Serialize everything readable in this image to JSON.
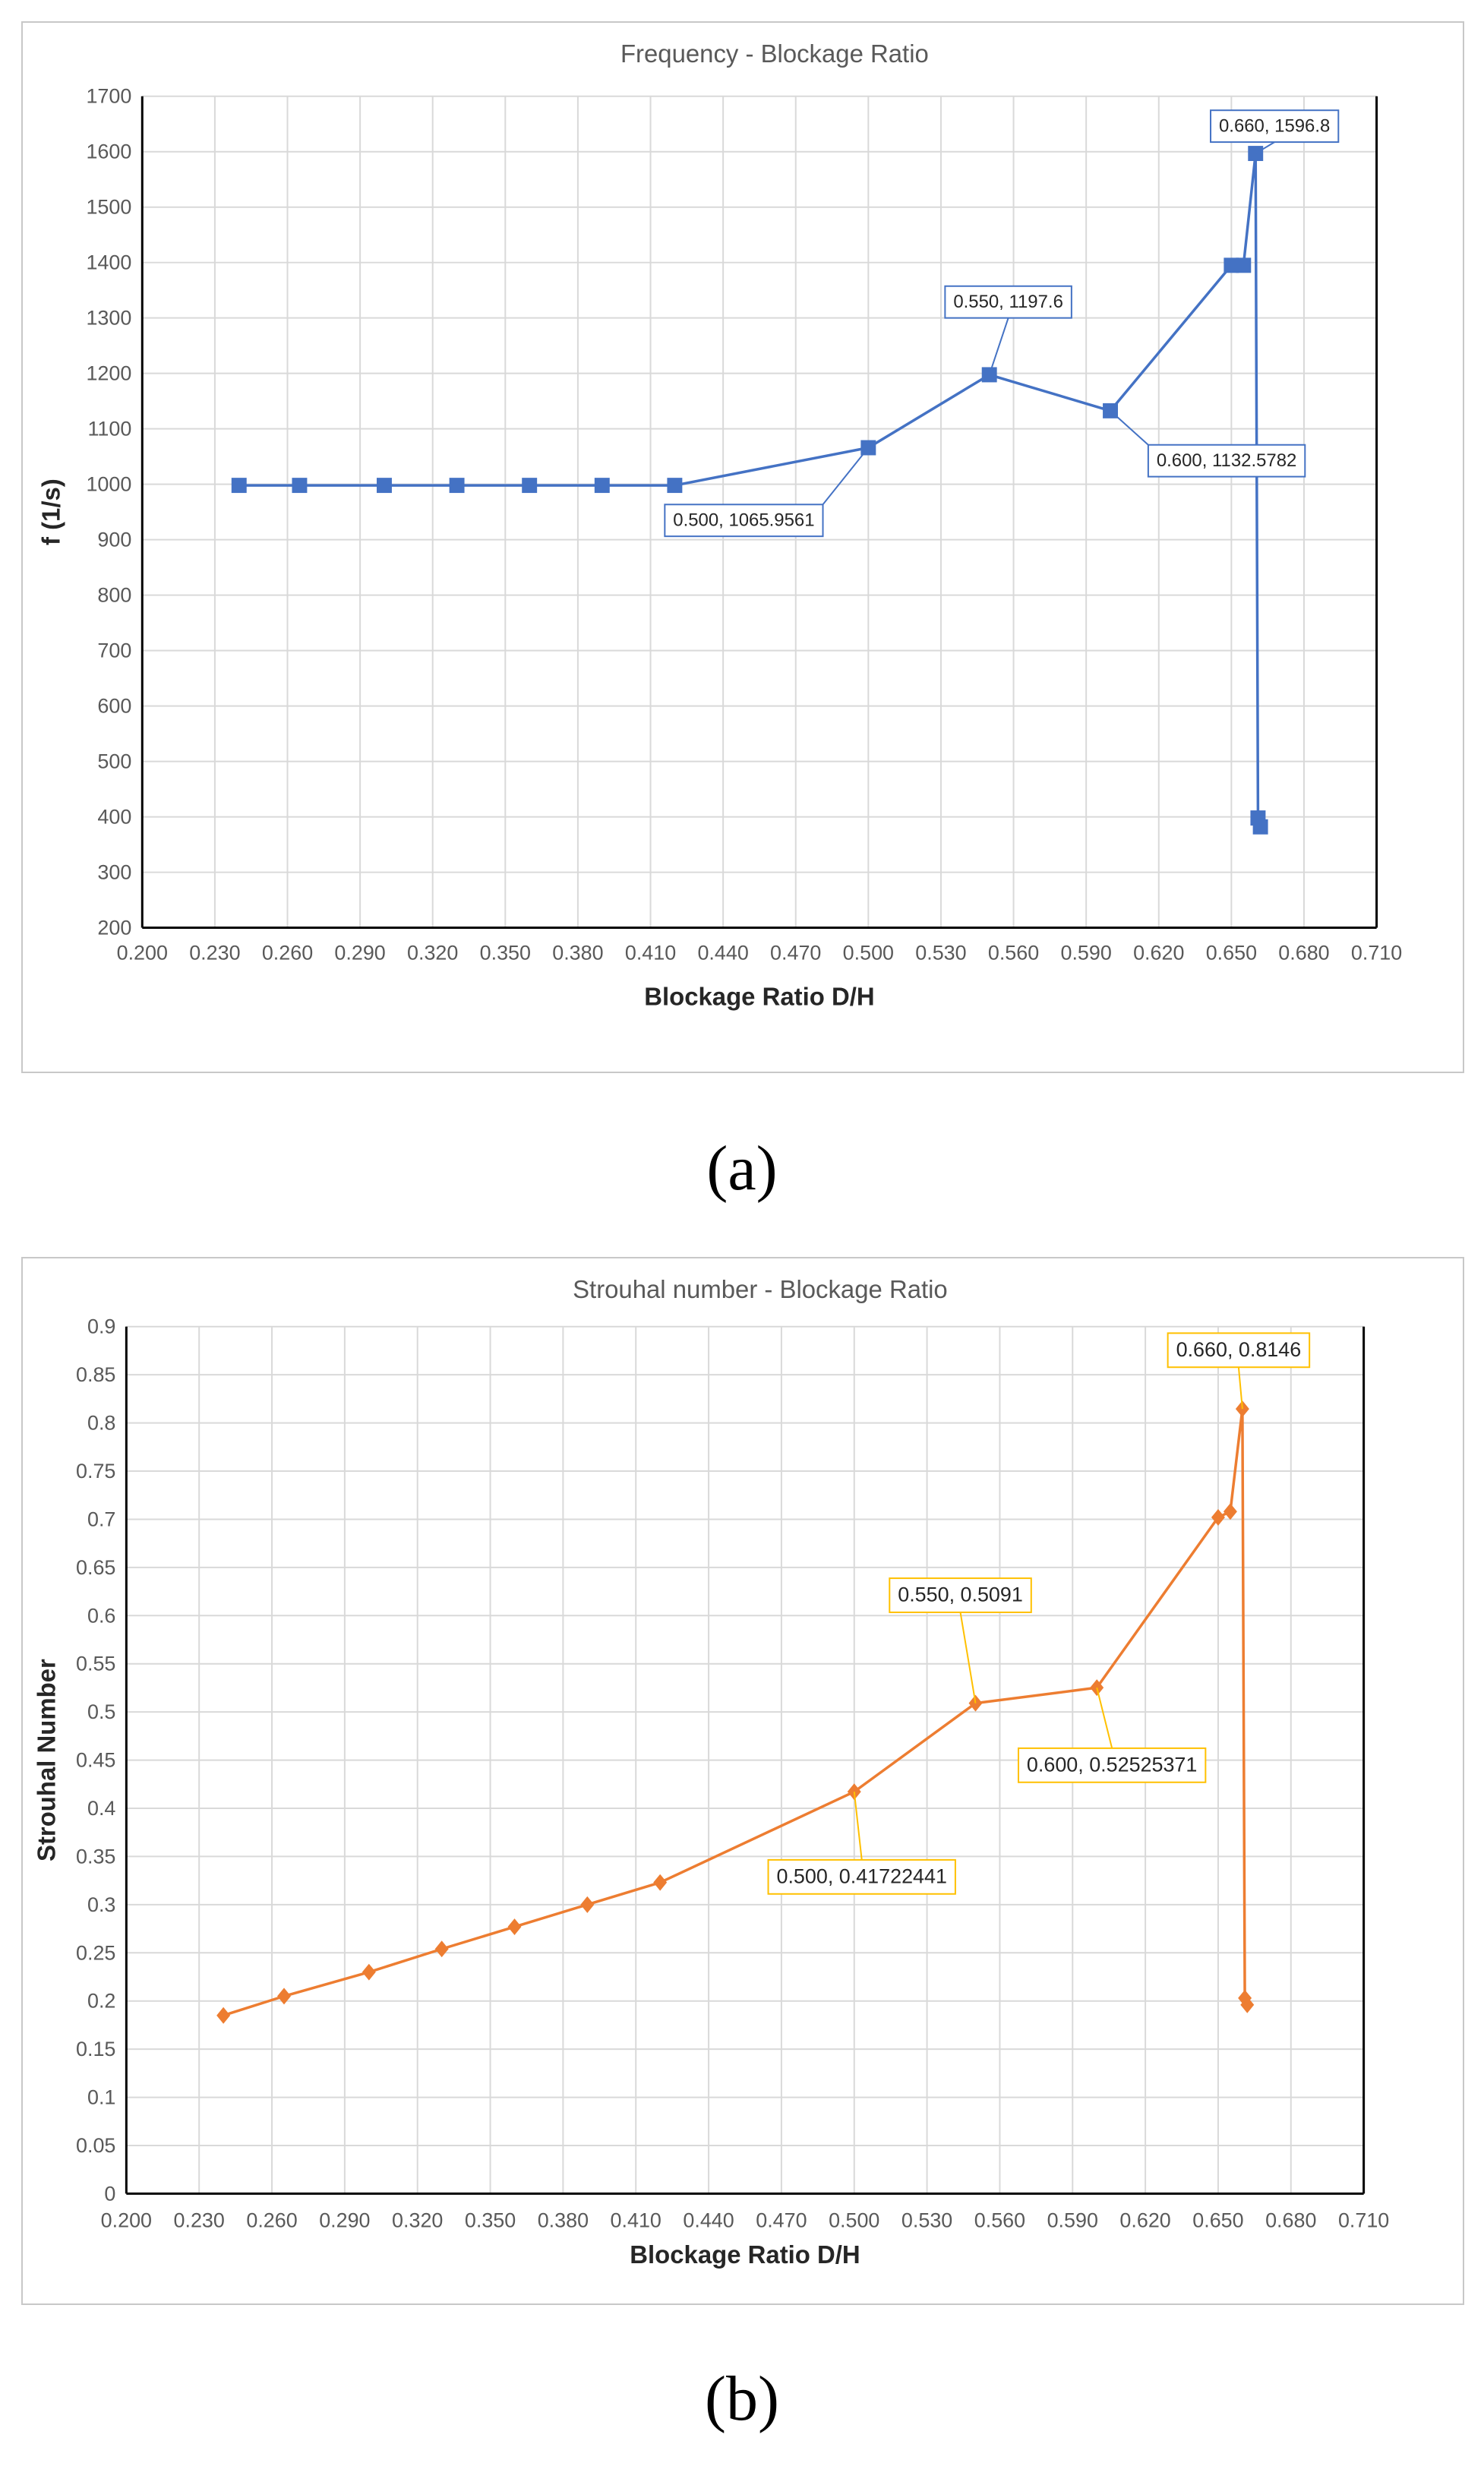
{
  "chart_data": [
    {
      "id": "a",
      "type": "line",
      "title": "Frequency - Blockage Ratio",
      "xlabel": "Blockage Ratio D/H",
      "ylabel": "f (1/s)",
      "xlim": [
        0.2,
        0.71
      ],
      "ylim": [
        200,
        1700
      ],
      "xticks": [
        "0.200",
        "0.230",
        "0.260",
        "0.290",
        "0.320",
        "0.350",
        "0.380",
        "0.410",
        "0.440",
        "0.470",
        "0.500",
        "0.530",
        "0.560",
        "0.590",
        "0.620",
        "0.650",
        "0.680",
        "0.710"
      ],
      "yticks": [
        "200",
        "300",
        "400",
        "500",
        "600",
        "700",
        "800",
        "900",
        "1000",
        "1100",
        "1200",
        "1300",
        "1400",
        "1500",
        "1600",
        "1700"
      ],
      "grid": true,
      "marker": "square",
      "color": "#4472c4",
      "label_color": "#4472c4",
      "series": [
        {
          "x": [
            0.24,
            0.265,
            0.3,
            0.33,
            0.36,
            0.39,
            0.42,
            0.5,
            0.55,
            0.6,
            0.65,
            0.655,
            0.66,
            0.661,
            0.662
          ],
          "y": [
            998,
            998,
            998,
            998,
            998,
            998,
            998,
            1065.9561,
            1197.6,
            1132.5782,
            1395,
            1395,
            1596.8,
            398,
            382
          ]
        }
      ],
      "annotations": [
        {
          "text": "0.500, 1065.9561",
          "x": 0.5,
          "y": 1065.9561
        },
        {
          "text": "0.550, 1197.6",
          "x": 0.55,
          "y": 1197.6
        },
        {
          "text": "0.600, 1132.5782",
          "x": 0.6,
          "y": 1132.5782
        },
        {
          "text": "0.660, 1596.8",
          "x": 0.66,
          "y": 1596.8
        }
      ]
    },
    {
      "id": "b",
      "type": "line",
      "title": "Strouhal number - Blockage Ratio",
      "xlabel": "Blockage Ratio D/H",
      "ylabel": "Strouhal Number",
      "xlim": [
        0.2,
        0.71
      ],
      "ylim": [
        0,
        0.9
      ],
      "xticks": [
        "0.200",
        "0.230",
        "0.260",
        "0.290",
        "0.320",
        "0.350",
        "0.380",
        "0.410",
        "0.440",
        "0.470",
        "0.500",
        "0.530",
        "0.560",
        "0.590",
        "0.620",
        "0.650",
        "0.680",
        "0.710"
      ],
      "yticks": [
        "0",
        "0.05",
        "0.1",
        "0.15",
        "0.2",
        "0.25",
        "0.3",
        "0.35",
        "0.4",
        "0.45",
        "0.5",
        "0.55",
        "0.6",
        "0.65",
        "0.7",
        "0.75",
        "0.8",
        "0.85",
        "0.9"
      ],
      "grid": true,
      "marker": "diamond",
      "color": "#ed7d31",
      "label_color": "#ffc000",
      "series": [
        {
          "x": [
            0.24,
            0.265,
            0.3,
            0.33,
            0.36,
            0.39,
            0.42,
            0.5,
            0.55,
            0.6,
            0.65,
            0.655,
            0.66,
            0.661,
            0.662
          ],
          "y": [
            0.185,
            0.205,
            0.23,
            0.254,
            0.277,
            0.3,
            0.323,
            0.41722441,
            0.5091,
            0.52525371,
            0.702,
            0.708,
            0.8146,
            0.203,
            0.196
          ]
        }
      ],
      "annotations": [
        {
          "text": "0.550, 0.5091",
          "x": 0.55,
          "y": 0.5091
        },
        {
          "text": "0.600, 0.52525371",
          "x": 0.6,
          "y": 0.52525371
        },
        {
          "text": "0.500, 0.41722441",
          "x": 0.5,
          "y": 0.41722441
        },
        {
          "text": "0.660, 0.8146",
          "x": 0.66,
          "y": 0.8146
        }
      ]
    }
  ],
  "captions": {
    "a": "(a)",
    "b": "(b)"
  }
}
